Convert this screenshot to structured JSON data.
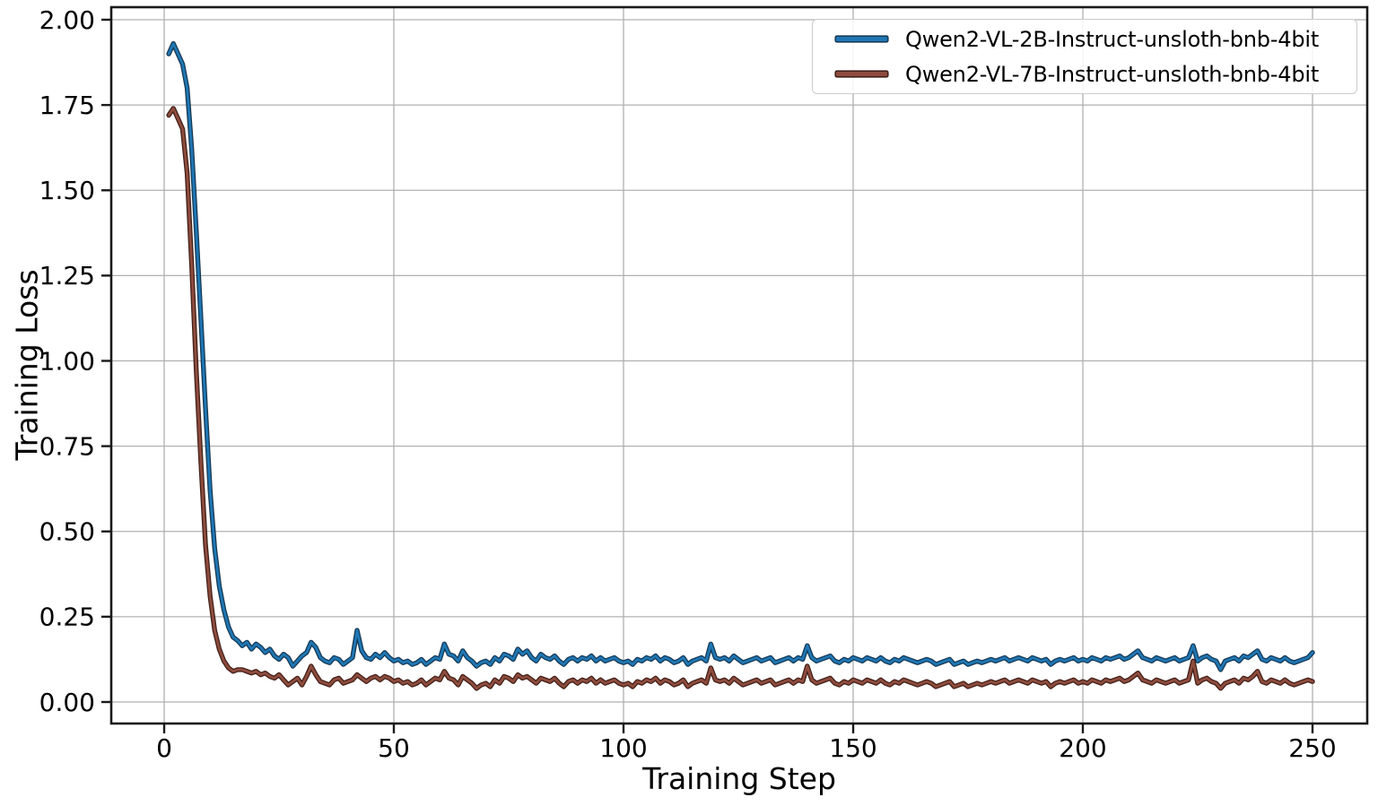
{
  "chart_data": {
    "type": "line",
    "title": "",
    "xlabel": "Training Step",
    "ylabel": "Training Loss",
    "grid": true,
    "legend_position": "upper right",
    "xlim": [
      -11.5,
      262.5
    ],
    "ylim": [
      -0.063,
      2.037
    ],
    "xticks": [
      0,
      50,
      100,
      150,
      200,
      250
    ],
    "ytick_labels": [
      "0.00",
      "0.25",
      "0.50",
      "0.75",
      "1.00",
      "1.25",
      "1.50",
      "1.75",
      "2.00"
    ],
    "x_first_step": 1,
    "x_step_increment": 1,
    "series": [
      {
        "name": "Qwen2-VL-2B-Instruct-unsloth-bnb-4bit",
        "color": "#1f77b4",
        "edge_color": "#173a56",
        "values": [
          1.9,
          1.93,
          1.9,
          1.87,
          1.8,
          1.62,
          1.38,
          1.12,
          0.86,
          0.62,
          0.45,
          0.34,
          0.27,
          0.22,
          0.19,
          0.18,
          0.165,
          0.175,
          0.155,
          0.17,
          0.16,
          0.145,
          0.155,
          0.135,
          0.125,
          0.14,
          0.13,
          0.105,
          0.12,
          0.135,
          0.145,
          0.175,
          0.16,
          0.13,
          0.12,
          0.115,
          0.13,
          0.125,
          0.11,
          0.12,
          0.13,
          0.21,
          0.15,
          0.13,
          0.125,
          0.14,
          0.13,
          0.145,
          0.13,
          0.12,
          0.125,
          0.115,
          0.12,
          0.11,
          0.115,
          0.125,
          0.11,
          0.12,
          0.13,
          0.125,
          0.17,
          0.14,
          0.135,
          0.12,
          0.15,
          0.13,
          0.12,
          0.105,
          0.115,
          0.12,
          0.11,
          0.13,
          0.12,
          0.14,
          0.135,
          0.125,
          0.155,
          0.14,
          0.15,
          0.13,
          0.12,
          0.14,
          0.13,
          0.125,
          0.135,
          0.12,
          0.11,
          0.125,
          0.13,
          0.12,
          0.13,
          0.125,
          0.135,
          0.12,
          0.13,
          0.12,
          0.125,
          0.13,
          0.12,
          0.115,
          0.12,
          0.11,
          0.125,
          0.12,
          0.13,
          0.125,
          0.135,
          0.12,
          0.13,
          0.125,
          0.115,
          0.12,
          0.13,
          0.11,
          0.12,
          0.125,
          0.13,
          0.12,
          0.17,
          0.13,
          0.125,
          0.13,
          0.12,
          0.135,
          0.125,
          0.115,
          0.12,
          0.125,
          0.13,
          0.12,
          0.125,
          0.13,
          0.115,
          0.12,
          0.125,
          0.13,
          0.12,
          0.13,
          0.125,
          0.165,
          0.13,
          0.12,
          0.125,
          0.13,
          0.135,
          0.12,
          0.115,
          0.125,
          0.12,
          0.13,
          0.125,
          0.12,
          0.13,
          0.125,
          0.12,
          0.13,
          0.12,
          0.115,
          0.125,
          0.12,
          0.13,
          0.125,
          0.12,
          0.115,
          0.12,
          0.125,
          0.12,
          0.11,
          0.115,
          0.12,
          0.125,
          0.11,
          0.115,
          0.12,
          0.11,
          0.115,
          0.12,
          0.115,
          0.12,
          0.125,
          0.12,
          0.125,
          0.13,
          0.12,
          0.125,
          0.13,
          0.125,
          0.12,
          0.13,
          0.125,
          0.12,
          0.125,
          0.11,
          0.12,
          0.125,
          0.12,
          0.125,
          0.13,
          0.12,
          0.125,
          0.12,
          0.13,
          0.125,
          0.12,
          0.13,
          0.125,
          0.13,
          0.135,
          0.125,
          0.13,
          0.14,
          0.15,
          0.13,
          0.125,
          0.12,
          0.13,
          0.125,
          0.12,
          0.125,
          0.13,
          0.12,
          0.125,
          0.13,
          0.165,
          0.12,
          0.13,
          0.135,
          0.125,
          0.12,
          0.095,
          0.12,
          0.125,
          0.13,
          0.12,
          0.135,
          0.13,
          0.14,
          0.15,
          0.125,
          0.12,
          0.13,
          0.125,
          0.12,
          0.13,
          0.12,
          0.115,
          0.12,
          0.125,
          0.13,
          0.145
        ]
      },
      {
        "name": "Qwen2-VL-7B-Instruct-unsloth-bnb-4bit",
        "color": "#8e4c3d",
        "edge_color": "#43211a",
        "values": [
          1.72,
          1.74,
          1.71,
          1.68,
          1.55,
          1.28,
          0.97,
          0.7,
          0.46,
          0.31,
          0.21,
          0.155,
          0.12,
          0.1,
          0.09,
          0.095,
          0.095,
          0.09,
          0.085,
          0.09,
          0.08,
          0.085,
          0.075,
          0.07,
          0.08,
          0.065,
          0.05,
          0.06,
          0.07,
          0.05,
          0.075,
          0.105,
          0.08,
          0.06,
          0.055,
          0.05,
          0.065,
          0.07,
          0.055,
          0.06,
          0.065,
          0.08,
          0.07,
          0.06,
          0.07,
          0.075,
          0.065,
          0.075,
          0.07,
          0.06,
          0.065,
          0.055,
          0.06,
          0.05,
          0.055,
          0.065,
          0.05,
          0.06,
          0.07,
          0.065,
          0.09,
          0.07,
          0.065,
          0.05,
          0.075,
          0.065,
          0.055,
          0.04,
          0.05,
          0.055,
          0.045,
          0.065,
          0.055,
          0.075,
          0.07,
          0.06,
          0.08,
          0.07,
          0.075,
          0.065,
          0.055,
          0.07,
          0.065,
          0.06,
          0.07,
          0.055,
          0.045,
          0.06,
          0.065,
          0.055,
          0.065,
          0.06,
          0.07,
          0.055,
          0.065,
          0.055,
          0.06,
          0.065,
          0.055,
          0.05,
          0.055,
          0.045,
          0.06,
          0.055,
          0.065,
          0.06,
          0.07,
          0.055,
          0.065,
          0.06,
          0.05,
          0.055,
          0.065,
          0.045,
          0.055,
          0.06,
          0.065,
          0.055,
          0.1,
          0.065,
          0.06,
          0.065,
          0.055,
          0.07,
          0.06,
          0.05,
          0.055,
          0.06,
          0.065,
          0.055,
          0.06,
          0.065,
          0.05,
          0.055,
          0.06,
          0.065,
          0.055,
          0.065,
          0.06,
          0.105,
          0.065,
          0.055,
          0.06,
          0.065,
          0.07,
          0.055,
          0.05,
          0.06,
          0.055,
          0.065,
          0.06,
          0.055,
          0.065,
          0.06,
          0.055,
          0.065,
          0.055,
          0.05,
          0.06,
          0.055,
          0.065,
          0.06,
          0.055,
          0.05,
          0.055,
          0.06,
          0.055,
          0.045,
          0.05,
          0.055,
          0.06,
          0.045,
          0.05,
          0.055,
          0.045,
          0.05,
          0.055,
          0.05,
          0.055,
          0.06,
          0.055,
          0.06,
          0.065,
          0.055,
          0.06,
          0.065,
          0.06,
          0.055,
          0.065,
          0.06,
          0.055,
          0.06,
          0.045,
          0.055,
          0.06,
          0.055,
          0.06,
          0.065,
          0.055,
          0.06,
          0.055,
          0.065,
          0.06,
          0.055,
          0.065,
          0.06,
          0.065,
          0.07,
          0.06,
          0.065,
          0.075,
          0.085,
          0.065,
          0.06,
          0.055,
          0.065,
          0.06,
          0.055,
          0.06,
          0.065,
          0.055,
          0.06,
          0.065,
          0.12,
          0.055,
          0.065,
          0.07,
          0.06,
          0.055,
          0.04,
          0.055,
          0.06,
          0.065,
          0.055,
          0.07,
          0.065,
          0.075,
          0.09,
          0.06,
          0.055,
          0.065,
          0.06,
          0.055,
          0.065,
          0.055,
          0.05,
          0.055,
          0.06,
          0.065,
          0.06
        ]
      }
    ],
    "style": {
      "grid_color": "#b0b0b0",
      "spine_color": "#1a1a1a",
      "background": "#ffffff"
    }
  }
}
